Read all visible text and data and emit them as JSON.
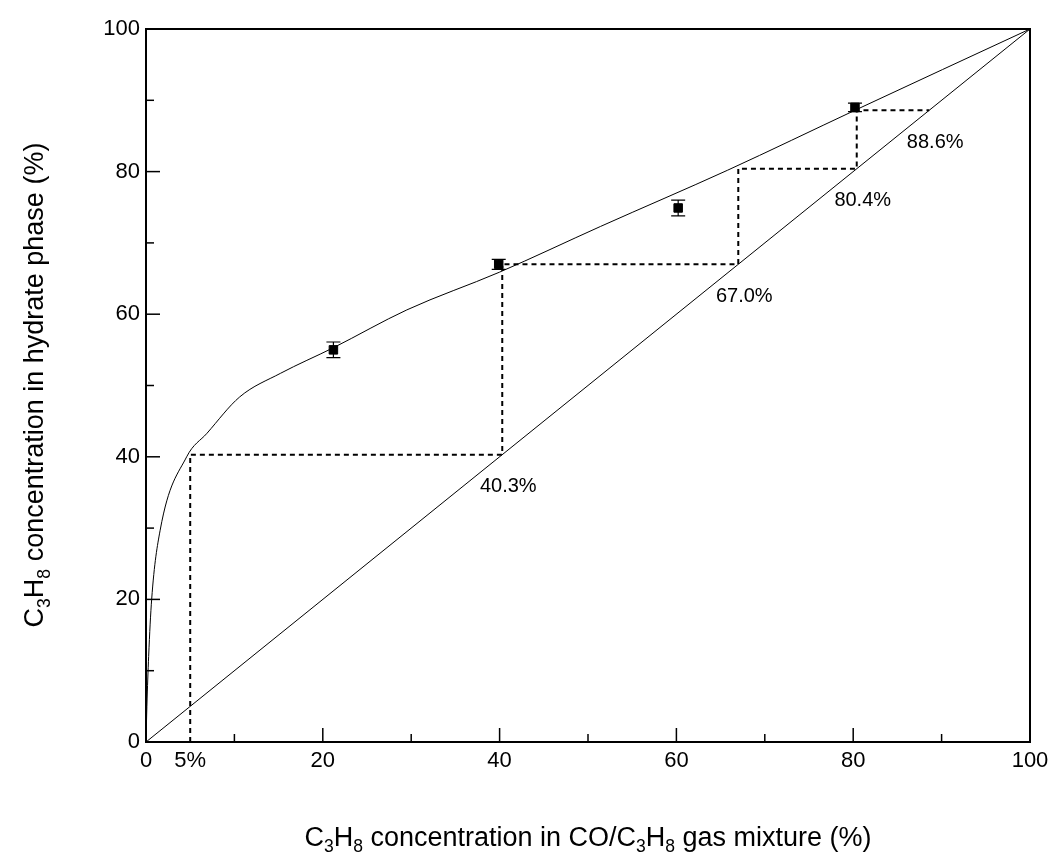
{
  "chart_data": {
    "type": "scatter",
    "xlabel": "C$_{3}$H$_{8}$ concentration in CO/C$_{3}$H$_{8}$ gas mixture (%)",
    "ylabel": "C$_{3}$H$_{8}$ concentration in hydrate phase (%)",
    "xlim": [
      0,
      100
    ],
    "ylim": [
      0,
      100
    ],
    "xticks": [
      0,
      {
        "value": 5,
        "label": "5%"
      },
      {
        "value": 10,
        "label": null
      },
      20,
      {
        "value": 30,
        "label": null
      },
      40,
      {
        "value": 50,
        "label": null
      },
      60,
      {
        "value": 70,
        "label": null
      },
      80,
      {
        "value": 90,
        "label": null
      },
      100
    ],
    "yticks": [
      0,
      {
        "value": 10,
        "label": null
      },
      20,
      {
        "value": 30,
        "label": null
      },
      40,
      {
        "value": 50,
        "label": null
      },
      60,
      {
        "value": 70,
        "label": null
      },
      80,
      {
        "value": 90,
        "label": null
      },
      100
    ],
    "series": [
      {
        "type": "line",
        "color": "#000000",
        "marker": "none",
        "line_style": "solid",
        "x": [
          0,
          0.1,
          0.3,
          0.64,
          1.6,
          4.6,
          6.9,
          10.6,
          15.2,
          21.2,
          29.5,
          40,
          51.4,
          65.8,
          80.2,
          100
        ],
        "values": [
          0,
          5,
          12,
          20,
          29.7,
          40,
          43.3,
          48.4,
          51.7,
          55.3,
          60.6,
          65.9,
          72.3,
          80.2,
          88.6,
          100
        ]
      },
      {
        "type": "line",
        "color": "#000000",
        "marker": "none",
        "line_style": "solid",
        "x": [
          0,
          100
        ],
        "values": [
          0,
          100
        ]
      },
      {
        "type": "line",
        "color": "#000000",
        "marker": "none",
        "line_style": "dashed",
        "x": [
          5,
          5,
          40.3,
          40.3,
          67,
          67,
          80.4,
          80.4,
          88.6
        ],
        "values": [
          0,
          40.3,
          40.3,
          67,
          67,
          80.4,
          80.4,
          88.6,
          88.6
        ]
      },
      {
        "color": "#000000",
        "marker": "square",
        "x": [
          21.2,
          39.9,
          60.2,
          80.2
        ],
        "values": [
          55.0,
          67.0,
          74.9,
          89.0
        ],
        "errors": [
          1.1,
          0.7,
          1.1,
          0.6
        ]
      }
    ],
    "annotations": [
      {
        "text": "40.3%",
        "x": 40.3,
        "y": 40.3
      },
      {
        "text": "67.0%",
        "x": 67,
        "y": 67
      },
      {
        "text": "80.4%",
        "x": 80.4,
        "y": 80.4
      },
      {
        "text": "88.6%",
        "x": 88.6,
        "y": 88.6
      }
    ]
  }
}
